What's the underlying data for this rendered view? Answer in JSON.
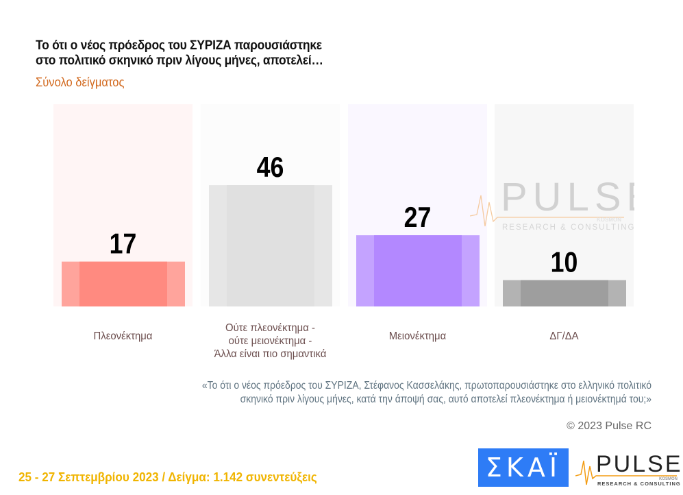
{
  "header": {
    "title_line1": "Το ότι ο νέος πρόεδρος του ΣΥΡΙΖΑ παρουσιάστηκε",
    "title_line2": "στο πολιτικό σκηνικό πριν λίγους μήνες, αποτελεί…",
    "subtitle": "Σύνολο δείγματος"
  },
  "chart_data": {
    "type": "bar",
    "title": "Το ότι ο νέος πρόεδρος του ΣΥΡΙΖΑ παρουσιάστηκε στο πολιτικό σκηνικό πριν λίγους μήνες, αποτελεί…",
    "subtitle": "Σύνολο δείγματος",
    "categories": [
      "Πλεονέκτημα",
      "Ούτε πλεονέκτημα - ούτε μειονέκτημα - Άλλα είναι πιο σημαντικά",
      "Μειονέκτημα",
      "ΔΓ/ΔΑ"
    ],
    "category_lines": [
      [
        "Πλεονέκτημα"
      ],
      [
        "Ούτε πλεονέκτημα -",
        "ούτε μειονέκτημα -",
        "Άλλα είναι πιο σημαντικά"
      ],
      [
        "Μειονέκτημα"
      ],
      [
        "ΔΓ/ΔΑ"
      ]
    ],
    "values": [
      17,
      46,
      27,
      10
    ],
    "value_labels": [
      "17",
      "46",
      "27",
      "10"
    ],
    "colors": {
      "bars": [
        "#ff8a80",
        "#e0e0e0",
        "#b388ff",
        "#9e9e9e"
      ],
      "bar_edges": [
        "#ffa49c",
        "#e6e6e6",
        "#c4a3ff",
        "#b3b3b3"
      ],
      "panels": [
        "#fff5f5",
        "#fcfcfc",
        "#faf7ff",
        "#f7f7f7"
      ]
    },
    "xlabel": "",
    "ylabel": "",
    "ylim": [
      0,
      76.7
    ],
    "grid": false,
    "legend": "none"
  },
  "note": {
    "quote_line1": "«Το ότι ο νέος πρόεδρος του ΣΥΡΙΖΑ, Στέφανος Κασσελάκης, πρωτοπαρουσιάστηκε στο ελληνικό πολιτικό",
    "quote_line2": "σκηνικό πριν λίγους μήνες, κατά την άποψή σας, αυτό αποτελεί πλεονέκτημα ή μειονέκτημά του;»",
    "copyright": "© 2023 Pulse RC"
  },
  "footer": {
    "date_sample": "25 - 27  Σεπτεμβρίου  2023  /  Δείγμα:  1.142 συνεντεύξεις",
    "skai_logo_text": "ΣΚΑΪ",
    "pulse_logo_text": "PULSE",
    "pulse_logo_sub": "RESEARCH & CONSULTING",
    "pulse_logo_tag": "KOSMON"
  },
  "watermark": {
    "text": "PULSE",
    "sub": "RESEARCH & CONSULTING",
    "tag": "KOSMON"
  }
}
